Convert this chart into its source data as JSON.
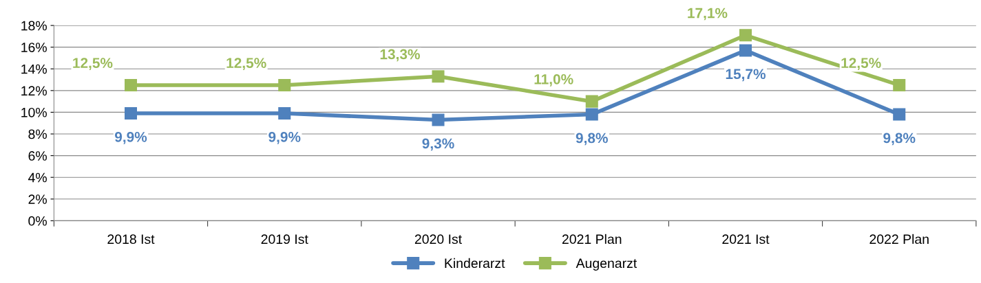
{
  "chart_data": {
    "type": "line",
    "categories": [
      "2018 Ist",
      "2019 Ist",
      "2020 Ist",
      "2021 Plan",
      "2021 Ist",
      "2022 Plan"
    ],
    "series": [
      {
        "name": "Kinderarzt",
        "color": "#4f81bd",
        "values": [
          9.9,
          9.9,
          9.3,
          9.8,
          15.7,
          9.8
        ],
        "value_labels": [
          "9,9%",
          "9,9%",
          "9,3%",
          "9,8%",
          "15,7%",
          "9,8%"
        ]
      },
      {
        "name": "Augenarzt",
        "color": "#9bbb59",
        "values": [
          12.5,
          12.5,
          13.3,
          11.0,
          17.1,
          12.5
        ],
        "value_labels": [
          "12,5%",
          "12,5%",
          "13,3%",
          "11,0%",
          "17,1%",
          "12,5%"
        ]
      }
    ],
    "ylim": [
      0,
      18
    ],
    "yticks": [
      {
        "value": 0,
        "label": "0%"
      },
      {
        "value": 2,
        "label": "2%"
      },
      {
        "value": 4,
        "label": "4%"
      },
      {
        "value": 6,
        "label": "6%"
      },
      {
        "value": 8,
        "label": "8%"
      },
      {
        "value": 10,
        "label": "10%"
      },
      {
        "value": 12,
        "label": "12%"
      },
      {
        "value": 14,
        "label": "14%"
      },
      {
        "value": 16,
        "label": "16%"
      },
      {
        "value": 18,
        "label": "18%"
      }
    ],
    "grid": "y",
    "legend": "bottom",
    "marker": "square",
    "line_style": "solid"
  }
}
